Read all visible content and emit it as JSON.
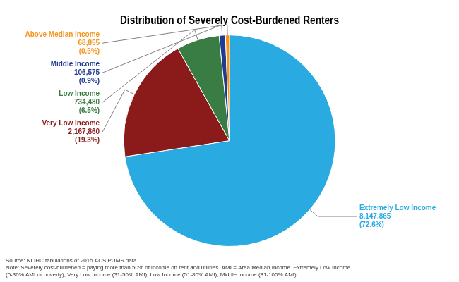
{
  "chart_data": {
    "type": "pie",
    "title": "Distribution of Severely Cost-Burdened Renters",
    "categories": [
      "Extremely Low Income",
      "Very Low Income",
      "Low Income",
      "Middle Income",
      "Above Median Income"
    ],
    "values": [
      8147865,
      2167860,
      734480,
      106575,
      68855
    ],
    "value_labels": [
      "8,147,865",
      "2,167,860",
      "734,480",
      "106,575",
      "68,855"
    ],
    "shares": [
      72.6,
      19.3,
      6.5,
      0.9,
      0.6
    ],
    "share_labels": [
      "(72.6%)",
      "(19.3%)",
      "(6.5%)",
      "(0.9%)",
      "(0.6%)"
    ],
    "colors": [
      "#29ABE2",
      "#8B1A1A",
      "#3A7D44",
      "#1F3A93",
      "#F7941D"
    ],
    "data_labels": true,
    "annotations": [
      "Source: NLIHC tabulations of 2015 ACS PUMS data.\nNote: Severely cost-burdened = paying more than 50% of income on rent and utilities. AMI = Area Median Income. Extremely Low Income\n(0-30% AMI or poverty); Very Low Income (31-50% AMI); Low Income (51-80% AMI); Middle Income (81-100% AMI)."
    ]
  }
}
